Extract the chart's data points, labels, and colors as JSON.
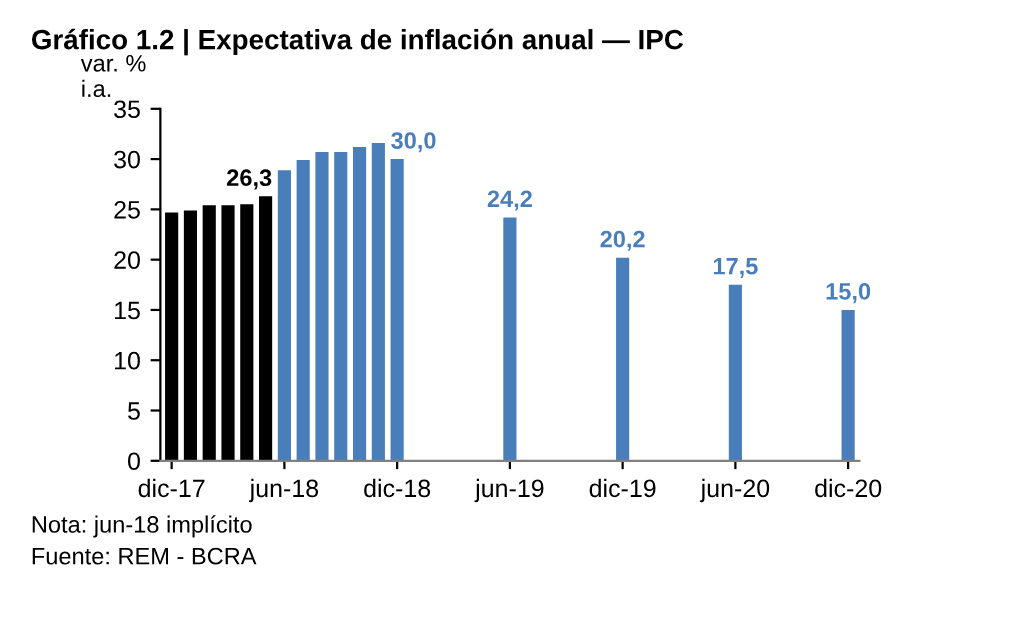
{
  "chart_data": {
    "type": "bar",
    "title": "Gráfico 1.2 | Expectativa de inflación anual — IPC",
    "ylabel": "var. %\ni.a.",
    "categories": [
      "dic-17",
      null,
      null,
      null,
      null,
      null,
      "jun-18",
      null,
      null,
      null,
      null,
      null,
      "dic-18",
      null,
      null,
      null,
      null,
      null,
      "jun-19",
      null,
      null,
      null,
      null,
      null,
      "dic-19",
      null,
      null,
      null,
      null,
      null,
      "jun-20",
      null,
      null,
      null,
      null,
      null,
      "dic-20"
    ],
    "series": [
      {
        "color": "#000000",
        "values": [
          24.7,
          24.9,
          25.4,
          25.4,
          25.5,
          26.3,
          null,
          null,
          null,
          null,
          null,
          null,
          null,
          null,
          null,
          null,
          null,
          null,
          null,
          null,
          null,
          null,
          null,
          null,
          null,
          null,
          null,
          null,
          null,
          null,
          null,
          null,
          null,
          null,
          null,
          null,
          null
        ],
        "value_labels": [
          null,
          null,
          null,
          null,
          null,
          "26,3",
          null,
          null,
          null,
          null,
          null,
          null,
          null,
          null,
          null,
          null,
          null,
          null,
          null,
          null,
          null,
          null,
          null,
          null,
          null,
          null,
          null,
          null,
          null,
          null,
          null,
          null,
          null,
          null,
          null,
          null,
          null
        ]
      },
      {
        "color": "#4a7ebb",
        "values": [
          null,
          null,
          null,
          null,
          null,
          null,
          28.9,
          29.9,
          30.7,
          30.7,
          31.2,
          31.6,
          30.0,
          null,
          null,
          null,
          null,
          null,
          24.2,
          null,
          null,
          null,
          null,
          null,
          20.2,
          null,
          null,
          null,
          null,
          null,
          17.5,
          null,
          null,
          null,
          null,
          null,
          15.0
        ],
        "value_labels": [
          null,
          null,
          null,
          null,
          null,
          null,
          null,
          null,
          null,
          null,
          null,
          null,
          "30,0",
          null,
          null,
          null,
          null,
          null,
          "24,2",
          null,
          null,
          null,
          null,
          null,
          "20,2",
          null,
          null,
          null,
          null,
          null,
          "17,5",
          null,
          null,
          null,
          null,
          null,
          "15,0"
        ]
      }
    ],
    "ylim": [
      0,
      35
    ],
    "yticks": [
      0,
      5,
      10,
      15,
      20,
      25,
      30,
      35
    ],
    "grid": false,
    "legend": false,
    "annotations": [
      "Nota: jun-18 implícito",
      "Fuente: REM - BCRA"
    ]
  }
}
